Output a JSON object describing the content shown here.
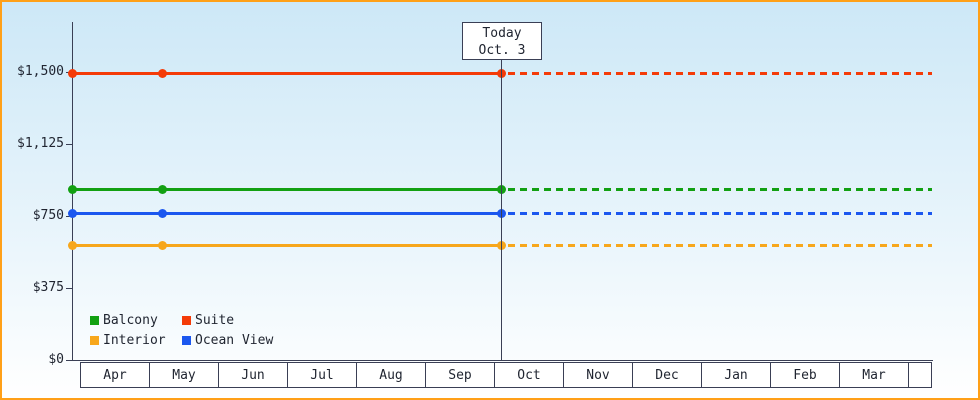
{
  "palette": {
    "frame_border": "#ffa018",
    "axis": "#3a3f55",
    "background_top": "#cde8f7",
    "background_bottom": "#ffffff",
    "text": "#1f2430"
  },
  "chart_data": {
    "type": "line",
    "title": "",
    "x_months": [
      "Apr",
      "May",
      "Jun",
      "Jul",
      "Aug",
      "Sep",
      "Oct",
      "Nov",
      "Dec",
      "Jan",
      "Feb",
      "Mar"
    ],
    "ylim": [
      0,
      1500
    ],
    "yticks": [
      {
        "value": 1500,
        "label": "$1,500"
      },
      {
        "value": 1125,
        "label": "$1,125"
      },
      {
        "value": 750,
        "label": "$750"
      },
      {
        "value": 375,
        "label": "$375"
      },
      {
        "value": 0,
        "label": "$0"
      }
    ],
    "today": {
      "title": "Today",
      "date": "Oct. 3"
    },
    "series": [
      {
        "name": "Suite",
        "color": "#f43b08",
        "value": 1490
      },
      {
        "name": "Balcony",
        "color": "#12a012",
        "value": 890
      },
      {
        "name": "Ocean View",
        "color": "#1b57ef",
        "value": 765
      },
      {
        "name": "Interior",
        "color": "#f7a71c",
        "value": 595
      }
    ],
    "legend_order": [
      "Balcony",
      "Suite",
      "Interior",
      "Ocean View"
    ],
    "layout_hints": {
      "grid": false,
      "legend_position": "bottom-left",
      "solid_until_today_then_dashed": true,
      "marker_months": [
        "Apr",
        "May",
        "Today"
      ]
    }
  }
}
